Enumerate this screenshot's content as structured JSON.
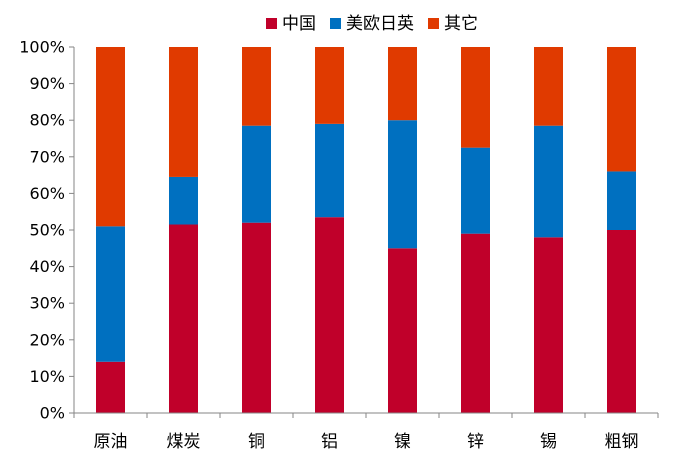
{
  "chart_data": {
    "type": "bar",
    "stacked": true,
    "categories": [
      "原油",
      "煤炭",
      "铜",
      "铝",
      "镍",
      "锌",
      "锡",
      "粗钢"
    ],
    "series": [
      {
        "name": "中国",
        "color": "#c0002a",
        "values": [
          14,
          51.5,
          52,
          53.5,
          45,
          49,
          48,
          50
        ]
      },
      {
        "name": "美欧日英",
        "color": "#0070c0",
        "values": [
          37,
          13,
          26.5,
          25.5,
          35,
          23.5,
          30.5,
          16
        ]
      },
      {
        "name": "其它",
        "color": "#e03a00",
        "values": [
          49,
          35.5,
          21.5,
          21,
          20,
          27.5,
          21.5,
          34
        ]
      }
    ],
    "title": "",
    "xlabel": "",
    "ylabel": "",
    "ylim": [
      0,
      100
    ],
    "yticks": [
      "0%",
      "10%",
      "20%",
      "30%",
      "40%",
      "50%",
      "60%",
      "70%",
      "80%",
      "90%",
      "100%"
    ],
    "grid": false,
    "legend_position": "top"
  }
}
